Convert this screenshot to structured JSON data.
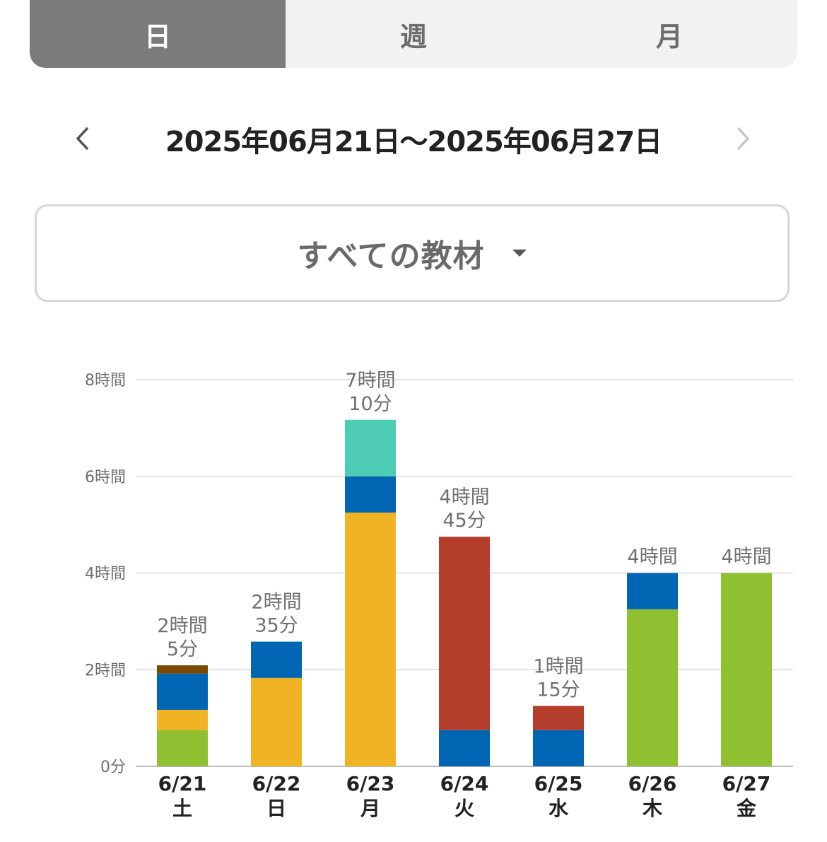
{
  "tabs": [
    {
      "label": "日",
      "active": true
    },
    {
      "label": "週",
      "active": false
    },
    {
      "label": "月",
      "active": false
    }
  ],
  "date_range": {
    "text": "2025年06月21日〜2025年06月27日",
    "prev_icon": "chevron-left-icon",
    "next_icon": "chevron-right-icon"
  },
  "material_filter": {
    "label": "すべての教材",
    "icon": "caret-down-icon"
  },
  "colors": {
    "green": "#8fc031",
    "yellow": "#f0b323",
    "blue": "#0066b3",
    "brown": "#7a4a00",
    "teal": "#4ecdb4",
    "red": "#b53d2b"
  },
  "chart_data": {
    "type": "bar",
    "stacked": true,
    "unit": "hours",
    "ylim": [
      0,
      8
    ],
    "yticks": [
      {
        "value": 0,
        "label": "0分"
      },
      {
        "value": 2,
        "label": "2時間"
      },
      {
        "value": 4,
        "label": "4時間"
      },
      {
        "value": 6,
        "label": "6時間"
      },
      {
        "value": 8,
        "label": "8時間"
      }
    ],
    "grid": true,
    "categories": [
      {
        "date": "6/21",
        "weekday": "土",
        "total_label": [
          "2時間",
          "5分"
        ]
      },
      {
        "date": "6/22",
        "weekday": "日",
        "total_label": [
          "2時間",
          "35分"
        ]
      },
      {
        "date": "6/23",
        "weekday": "月",
        "total_label": [
          "7時間",
          "10分"
        ]
      },
      {
        "date": "6/24",
        "weekday": "火",
        "total_label": [
          "4時間",
          "45分"
        ]
      },
      {
        "date": "6/25",
        "weekday": "水",
        "total_label": [
          "1時間",
          "15分"
        ]
      },
      {
        "date": "6/26",
        "weekday": "木",
        "total_label": [
          "4時間"
        ]
      },
      {
        "date": "6/27",
        "weekday": "金",
        "total_label": [
          "4時間"
        ]
      }
    ],
    "series": [
      {
        "color": "#8fc031",
        "values": [
          0.75,
          0,
          0,
          0,
          0,
          3.25,
          4.0
        ]
      },
      {
        "color": "#f0b323",
        "values": [
          0.42,
          1.83,
          5.25,
          0,
          0,
          0,
          0
        ]
      },
      {
        "color": "#0066b3",
        "values": [
          0.75,
          0.75,
          0.75,
          0.75,
          0.75,
          0.75,
          0
        ]
      },
      {
        "color": "#7a4a00",
        "values": [
          0.17,
          0,
          0,
          0,
          0,
          0,
          0
        ]
      },
      {
        "color": "#4ecdb4",
        "values": [
          0,
          0,
          1.17,
          0,
          0,
          0,
          0
        ]
      },
      {
        "color": "#b53d2b",
        "values": [
          0,
          0,
          0,
          4.0,
          0.5,
          0,
          0
        ]
      }
    ]
  }
}
